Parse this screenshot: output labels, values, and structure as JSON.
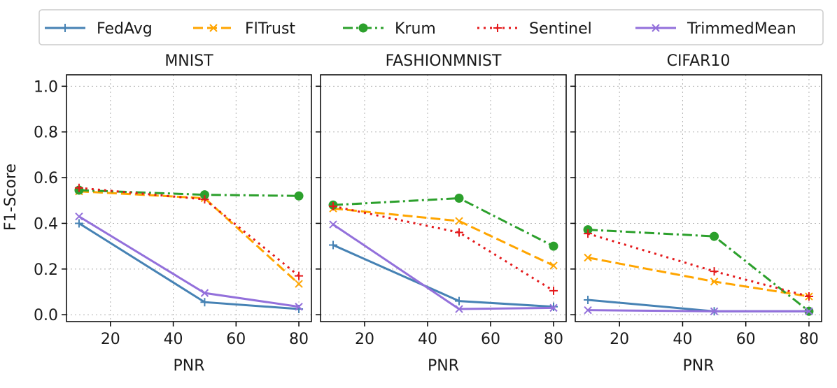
{
  "chart_data": {
    "type": "line",
    "ylabel": "F1-Score",
    "xlabel": "PNR",
    "ylim": [
      -0.03,
      1.05
    ],
    "xlim": [
      6,
      84
    ],
    "x_ticks": [
      20,
      40,
      60,
      80
    ],
    "y_ticks": [
      0.0,
      0.2,
      0.4,
      0.6,
      0.8,
      1.0
    ],
    "y_tick_labels": [
      "0.0",
      "0.2",
      "0.4",
      "0.6",
      "0.8",
      "1.0"
    ],
    "x_tick_labels": [
      "20",
      "40",
      "60",
      "80"
    ],
    "grid": true,
    "legend_position": "top",
    "legend": [
      {
        "name": "FedAvg",
        "color": "#4682b4",
        "marker": "plus",
        "dash": "solid"
      },
      {
        "name": "FlTrust",
        "color": "#ffa500",
        "marker": "x",
        "dash": "dashed"
      },
      {
        "name": "Krum",
        "color": "#2ca02c",
        "marker": "circle",
        "dash": "dashdot"
      },
      {
        "name": "Sentinel",
        "color": "#e41a1c",
        "marker": "plus",
        "dash": "dotted"
      },
      {
        "name": "TrimmedMean",
        "color": "#9370db",
        "marker": "x",
        "dash": "solid"
      }
    ],
    "panels": [
      {
        "title": "MNIST",
        "x": [
          10,
          50,
          80
        ],
        "series": [
          {
            "name": "FedAvg",
            "values": [
              0.4,
              0.055,
              0.025
            ]
          },
          {
            "name": "FlTrust",
            "values": [
              0.54,
              0.51,
              0.135
            ]
          },
          {
            "name": "Krum",
            "values": [
              0.545,
              0.525,
              0.52
            ]
          },
          {
            "name": "Sentinel",
            "values": [
              0.555,
              0.505,
              0.17
            ]
          },
          {
            "name": "TrimmedMean",
            "values": [
              0.43,
              0.095,
              0.035
            ]
          }
        ]
      },
      {
        "title": "FASHIONMNIST",
        "x": [
          10,
          50,
          80
        ],
        "series": [
          {
            "name": "FedAvg",
            "values": [
              0.305,
              0.06,
              0.035
            ]
          },
          {
            "name": "FlTrust",
            "values": [
              0.465,
              0.41,
              0.215
            ]
          },
          {
            "name": "Krum",
            "values": [
              0.48,
              0.51,
              0.3
            ]
          },
          {
            "name": "Sentinel",
            "values": [
              0.475,
              0.36,
              0.105
            ]
          },
          {
            "name": "TrimmedMean",
            "values": [
              0.395,
              0.025,
              0.03
            ]
          }
        ]
      },
      {
        "title": "CIFAR10",
        "x": [
          10,
          50,
          80
        ],
        "series": [
          {
            "name": "FedAvg",
            "values": [
              0.065,
              0.015,
              0.015
            ]
          },
          {
            "name": "FlTrust",
            "values": [
              0.25,
              0.145,
              0.08
            ]
          },
          {
            "name": "Krum",
            "values": [
              0.372,
              0.343,
              0.015
            ]
          },
          {
            "name": "Sentinel",
            "values": [
              0.355,
              0.19,
              0.08
            ]
          },
          {
            "name": "TrimmedMean",
            "values": [
              0.02,
              0.015,
              0.015
            ]
          }
        ]
      }
    ]
  }
}
